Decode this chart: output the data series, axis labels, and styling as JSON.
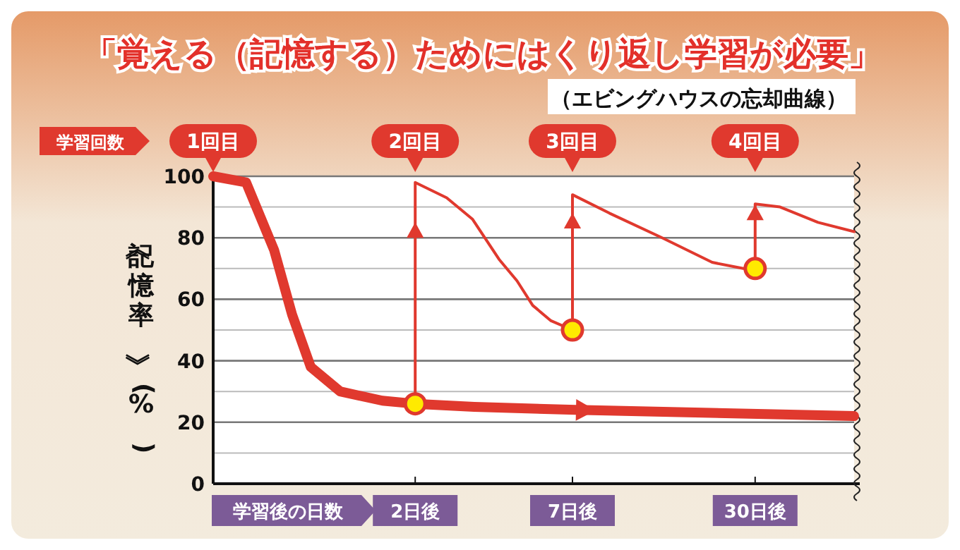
{
  "chart_data": {
    "type": "line",
    "title": "「覚える（記憶する）ためにはくり返し学習が必要」",
    "subtitle": "（エビングハウスの忘却曲線）",
    "xlabel": "学習後の日数",
    "ylabel": "《記憶率》(%)",
    "log": "x",
    "xlim": [
      0.4,
      66
    ],
    "xticks": [
      {
        "value": 2,
        "label": "2日後"
      },
      {
        "value": 7,
        "label": "7日後"
      },
      {
        "value": 30,
        "label": "30日後"
      }
    ],
    "ylim": [
      0,
      100
    ],
    "yticks": [
      0,
      20,
      40,
      60,
      80,
      100
    ],
    "grid": "y",
    "series": [
      {
        "color": "#e0392e",
        "x": [
          0.4,
          0.52,
          0.65,
          0.75,
          0.87,
          1.1,
          1.54,
          2,
          3.2,
          7.2,
          66
        ],
        "values": [
          100,
          98,
          76,
          55,
          38,
          30,
          27,
          26,
          25,
          24,
          22
        ]
      },
      {
        "color": "#e0392e",
        "x": [
          2,
          2,
          2.57,
          3.16,
          3.9,
          4.5,
          5.1,
          5.9,
          7,
          7,
          9.4,
          14.3,
          21.3,
          27.3,
          30,
          30,
          36.6,
          49.5,
          66
        ],
        "values": [
          26,
          98,
          93,
          86,
          73,
          66,
          58,
          53,
          50,
          94,
          88,
          80,
          72,
          70,
          70,
          91,
          90,
          85,
          82
        ]
      },
      {
        "type": "scatter",
        "marker": "circle",
        "color": "#ffea00",
        "x": [
          2,
          7,
          30
        ],
        "values": [
          26,
          50,
          70
        ]
      }
    ],
    "annotations": [
      "学習回数",
      "1回目",
      "2回目",
      "3回目",
      "4回目"
    ]
  }
}
